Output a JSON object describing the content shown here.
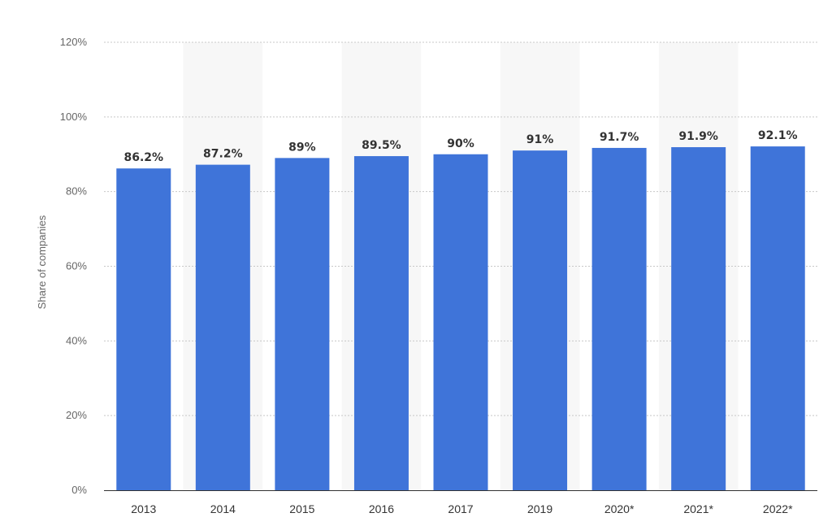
{
  "chart_data": {
    "type": "bar",
    "categories": [
      "2013",
      "2014",
      "2015",
      "2016",
      "2017",
      "2019",
      "2020*",
      "2021*",
      "2022*"
    ],
    "values": [
      86.2,
      87.2,
      89,
      89.5,
      90,
      91,
      91.7,
      91.9,
      92.1
    ],
    "data_labels": [
      "86.2%",
      "87.2%",
      "89%",
      "89.5%",
      "90%",
      "91%",
      "91.7%",
      "91.9%",
      "92.1%"
    ],
    "title": "",
    "xlabel": "",
    "ylabel": "Share of companies",
    "ylim": [
      0,
      120
    ],
    "yticks": [
      0,
      20,
      40,
      60,
      80,
      100,
      120
    ],
    "ytick_labels": [
      "0%",
      "20%",
      "40%",
      "60%",
      "80%",
      "100%",
      "120%"
    ],
    "grid": true,
    "legend": "none",
    "colors": {
      "bar": "#3f74d9",
      "band": "#f7f7f7",
      "grid": "#c8c8c8",
      "axis": "#333333"
    }
  }
}
